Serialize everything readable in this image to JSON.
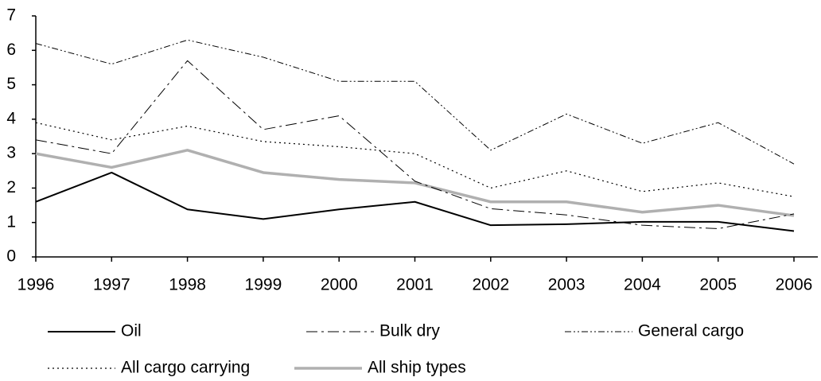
{
  "chart_data": {
    "type": "line",
    "x": [
      1996,
      1997,
      1998,
      1999,
      2000,
      2001,
      2002,
      2003,
      2004,
      2005,
      2006
    ],
    "xlim": [
      1996,
      2006
    ],
    "xticks": [
      1996,
      1997,
      1998,
      1999,
      2000,
      2001,
      2002,
      2003,
      2004,
      2005,
      2006
    ],
    "ylim": [
      0,
      7
    ],
    "yticks": [
      0,
      1,
      2,
      3,
      4,
      5,
      6,
      7
    ],
    "series": [
      {
        "name": "Oil",
        "color": "#000000",
        "dash": "none",
        "width": 2,
        "values": [
          1.6,
          2.45,
          1.38,
          1.1,
          1.38,
          1.6,
          0.92,
          0.95,
          1.02,
          1.02,
          0.75
        ]
      },
      {
        "name": "Bulk dry",
        "color": "#000000",
        "dash": "14,5,3,5",
        "width": 1,
        "values": [
          3.4,
          3.0,
          5.7,
          3.7,
          4.1,
          2.2,
          1.4,
          1.22,
          0.92,
          0.82,
          1.25
        ]
      },
      {
        "name": "General cargo",
        "color": "#000000",
        "dash": "8,3,2,3,2,3",
        "width": 1,
        "values": [
          6.2,
          5.6,
          6.3,
          5.8,
          5.1,
          5.1,
          3.1,
          4.15,
          3.3,
          3.9,
          2.7
        ]
      },
      {
        "name": "All cargo carrying",
        "color": "#000000",
        "dash": "2,4",
        "width": 1.2,
        "values": [
          3.9,
          3.4,
          3.8,
          3.35,
          3.2,
          3.0,
          2.0,
          2.5,
          1.9,
          2.15,
          1.75
        ]
      },
      {
        "name": "All ship types",
        "color": "#b0b0b0",
        "dash": "none",
        "width": 3.5,
        "values": [
          3.0,
          2.6,
          3.1,
          2.45,
          2.25,
          2.15,
          1.6,
          1.6,
          1.3,
          1.5,
          1.2
        ]
      }
    ]
  }
}
